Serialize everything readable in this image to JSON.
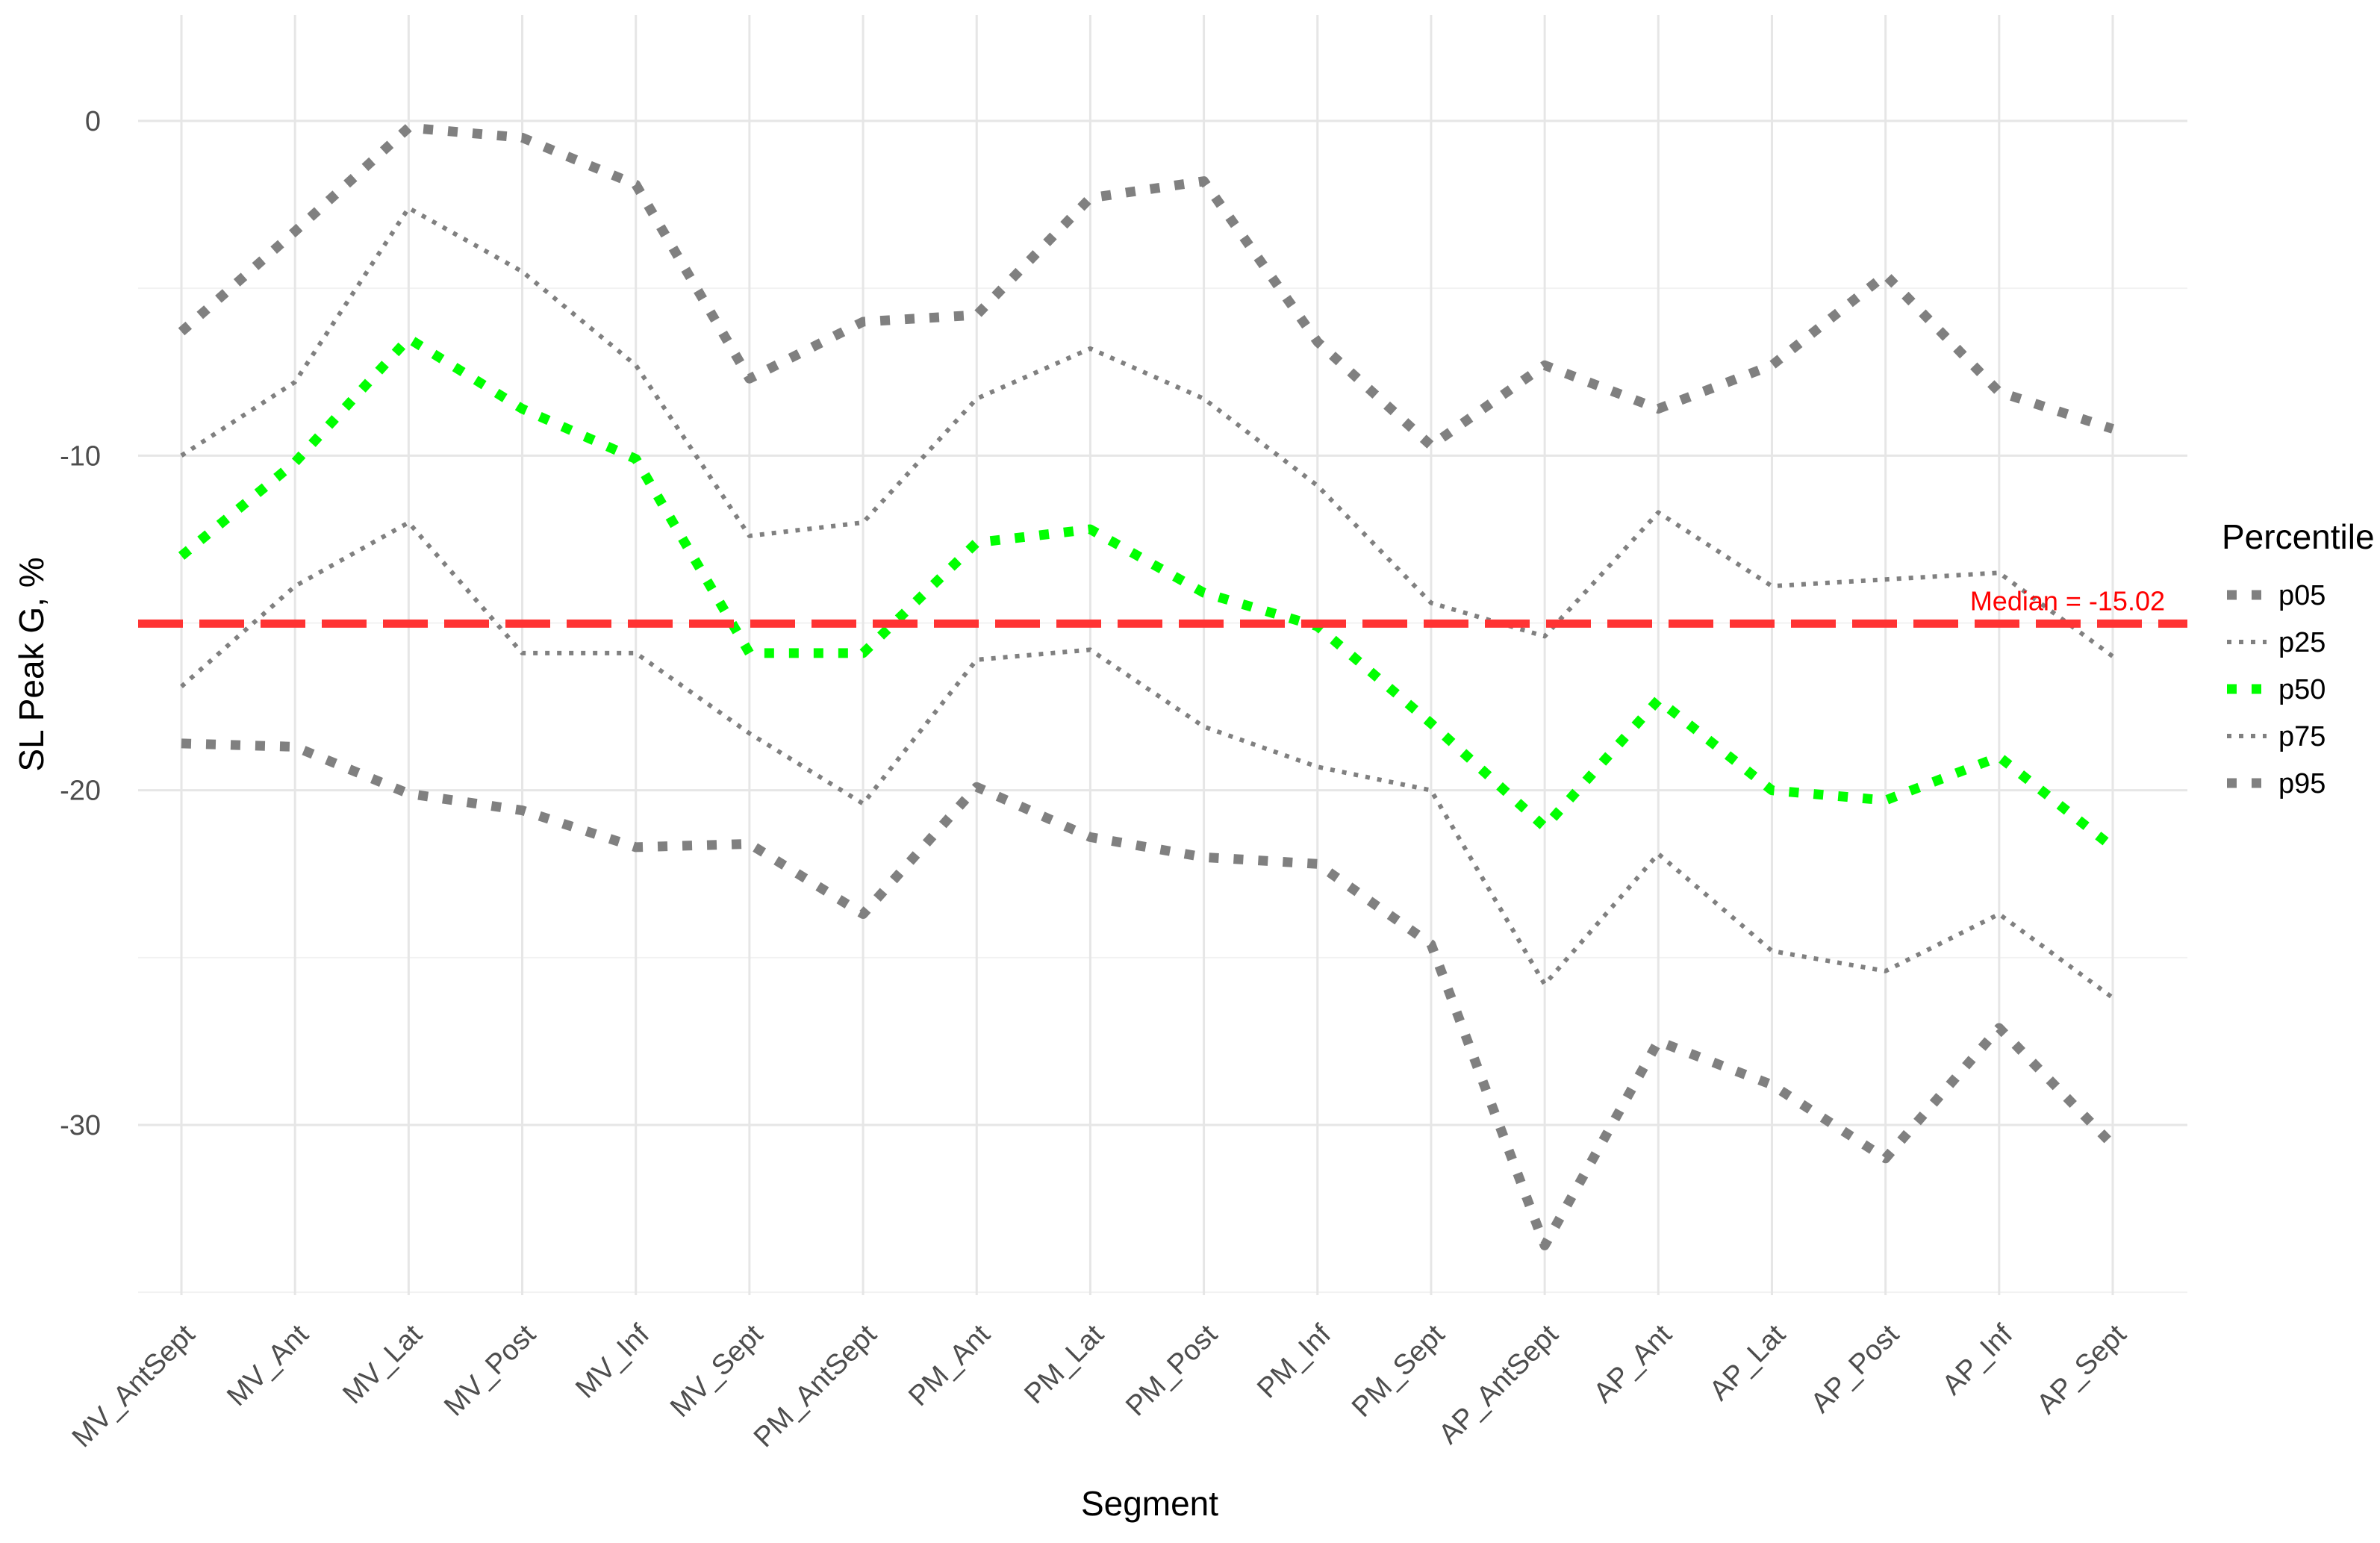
{
  "chart_data": {
    "type": "line",
    "xlabel": "Segment",
    "ylabel": "SL Peak G, %",
    "ylim": [
      -35.5,
      3
    ],
    "yticks": [
      0,
      -10,
      -20,
      -30
    ],
    "grid": true,
    "legend": {
      "title": "Percentile",
      "placement": "right"
    },
    "categories": [
      "MV_AntSept",
      "MV_Ant",
      "MV_Lat",
      "MV_Post",
      "MV_Inf",
      "MV_Sept",
      "PM_AntSept",
      "PM_Ant",
      "PM_Lat",
      "PM_Post",
      "PM_Inf",
      "PM_Sept",
      "AP_AntSept",
      "AP_Ant",
      "AP_Lat",
      "AP_Post",
      "AP_Inf",
      "AP_Sept"
    ],
    "series": [
      {
        "name": "p05",
        "color": "#808080",
        "style": "dotted-thick",
        "values": [
          -18.6,
          -18.7,
          -20.1,
          -20.6,
          -21.7,
          -21.6,
          -23.7,
          -19.9,
          -21.4,
          -22.0,
          -22.2,
          -24.6,
          -33.6,
          -27.5,
          -28.8,
          -31.0,
          -27.1,
          -30.6
        ]
      },
      {
        "name": "p25",
        "color": "#808080",
        "style": "dotted-thin",
        "values": [
          -16.9,
          -13.9,
          -12.0,
          -15.9,
          -15.9,
          -18.3,
          -20.4,
          -16.1,
          -15.8,
          -18.1,
          -19.3,
          -20.0,
          -25.8,
          -21.9,
          -24.8,
          -25.4,
          -23.7,
          -26.2
        ]
      },
      {
        "name": "p50",
        "color": "#00ff00",
        "style": "dotted-thick",
        "values": [
          -13.0,
          -10.2,
          -6.5,
          -8.6,
          -10.1,
          -15.9,
          -15.9,
          -12.6,
          -12.2,
          -14.1,
          -15.1,
          -18.0,
          -21.1,
          -17.3,
          -20.0,
          -20.3,
          -19.0,
          -21.7
        ]
      },
      {
        "name": "p75",
        "color": "#808080",
        "style": "dotted-thin",
        "values": [
          -10.0,
          -7.8,
          -2.6,
          -4.5,
          -7.3,
          -12.4,
          -12.0,
          -8.3,
          -6.8,
          -8.3,
          -10.9,
          -14.4,
          -15.4,
          -11.7,
          -13.9,
          -13.7,
          -13.5,
          -16.0
        ]
      },
      {
        "name": "p95",
        "color": "#808080",
        "style": "dotted-thick",
        "values": [
          -6.3,
          -3.3,
          -0.2,
          -0.5,
          -1.9,
          -7.7,
          -6.0,
          -5.8,
          -2.3,
          -1.8,
          -6.6,
          -9.7,
          -7.3,
          -8.6,
          -7.3,
          -4.6,
          -8.1,
          -9.2
        ]
      }
    ],
    "reference_line": {
      "y": -15.02,
      "label": "Median = -15.02",
      "color": "#ff3333"
    }
  }
}
